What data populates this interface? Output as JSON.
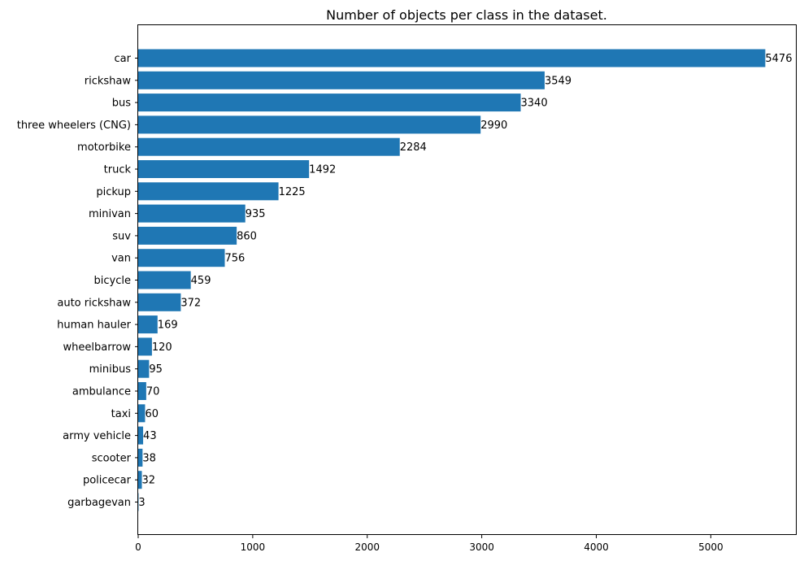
{
  "chart_data": {
    "type": "bar",
    "orientation": "horizontal",
    "title": "Number of objects per class in the dataset.",
    "xlabel": "",
    "ylabel": "",
    "categories": [
      "car",
      "rickshaw",
      "bus",
      "three wheelers (CNG)",
      "motorbike",
      "truck",
      "pickup",
      "minivan",
      "suv",
      "van",
      "bicycle",
      "auto rickshaw",
      "human hauler",
      "wheelbarrow",
      "minibus",
      "ambulance",
      "taxi",
      "army vehicle",
      "scooter",
      "policecar",
      "garbagevan"
    ],
    "values": [
      5476,
      3549,
      3340,
      2990,
      2284,
      1492,
      1225,
      935,
      860,
      756,
      459,
      372,
      169,
      120,
      95,
      70,
      60,
      43,
      38,
      32,
      3
    ],
    "xlim": [
      0,
      5750
    ],
    "xticks": [
      0,
      1000,
      2000,
      3000,
      4000,
      5000
    ],
    "grid": false,
    "legend": "none",
    "bar_color": "#1f77b4"
  }
}
